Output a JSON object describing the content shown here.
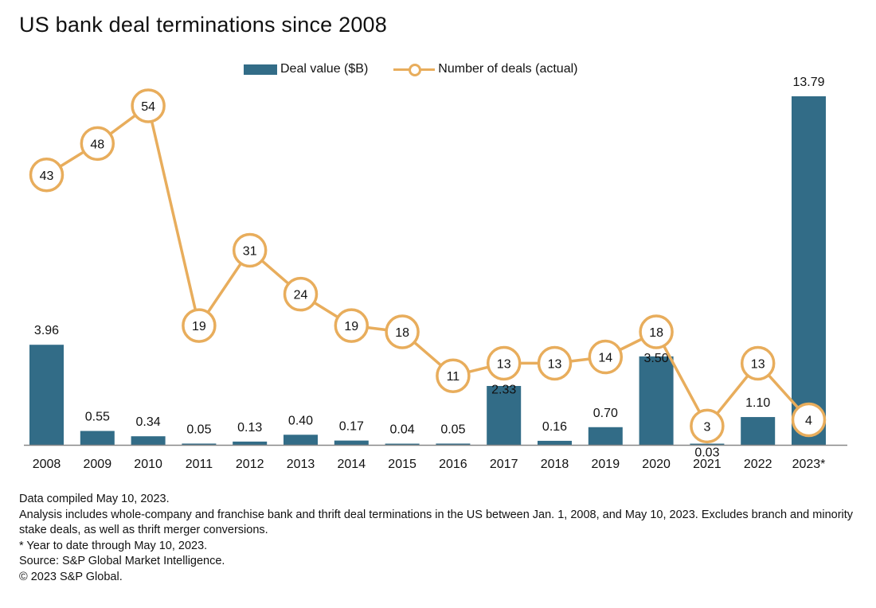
{
  "title": "US bank deal terminations since 2008",
  "legend": {
    "bar_label": "Deal value ($B)",
    "line_label": "Number of deals (actual)"
  },
  "colors": {
    "bar": "#326c87",
    "line": "#e8ad5c",
    "axis": "#888888"
  },
  "chart_data": {
    "type": "bar",
    "categories": [
      "2008",
      "2009",
      "2010",
      "2011",
      "2012",
      "2013",
      "2014",
      "2015",
      "2016",
      "2017",
      "2018",
      "2019",
      "2020",
      "2021",
      "2022",
      "2023*"
    ],
    "series": [
      {
        "name": "Deal value ($B)",
        "type": "bar",
        "values": [
          3.96,
          0.55,
          0.34,
          0.05,
          0.13,
          0.4,
          0.17,
          0.04,
          0.05,
          2.33,
          0.16,
          0.7,
          3.5,
          0.03,
          1.1,
          13.79
        ],
        "labels": [
          "3.96",
          "0.55",
          "0.34",
          "0.05",
          "0.13",
          "0.40",
          "0.17",
          "0.04",
          "0.05",
          "2.33",
          "0.16",
          "0.70",
          "3.50",
          "0.03",
          "1.10",
          "13.79"
        ]
      },
      {
        "name": "Number of deals (actual)",
        "type": "line",
        "values": [
          43,
          48,
          54,
          19,
          31,
          24,
          19,
          18,
          11,
          13,
          13,
          14,
          18,
          3,
          13,
          4
        ]
      }
    ],
    "bar_ylim": [
      0,
      13.79
    ],
    "line_ylim": [
      0,
      54
    ],
    "grid": false
  },
  "notes": [
    "Data compiled May 10, 2023.",
    "Analysis includes whole-company and franchise bank and thrift deal terminations in the US between Jan. 1, 2008, and May 10, 2023. Excludes branch and minority stake deals, as well as thrift merger conversions.",
    "* Year to date through May 10, 2023.",
    "Source: S&P Global Market Intelligence.",
    "© 2023 S&P Global."
  ]
}
